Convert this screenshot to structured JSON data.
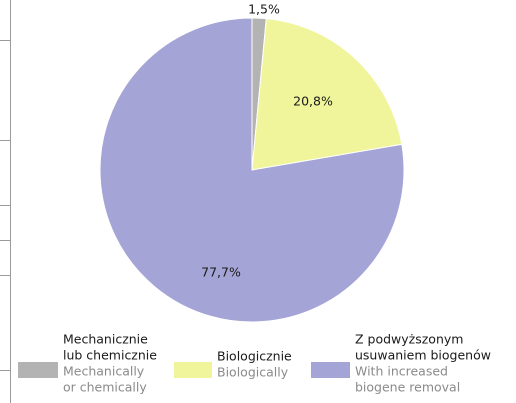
{
  "chart_data": {
    "type": "pie",
    "categories": [
      {
        "pl": [
          "Mechanicznie",
          "lub chemicznie"
        ],
        "en": [
          "Mechanically",
          "or chemically"
        ]
      },
      {
        "pl": [
          "Biologicznie"
        ],
        "en": [
          "Biologically"
        ]
      },
      {
        "pl": [
          "Z podwyższonym",
          "usuwaniem biogenów"
        ],
        "en": [
          "With increased",
          "biogene removal"
        ]
      }
    ],
    "values": [
      1.5,
      20.8,
      77.7
    ],
    "value_labels": [
      "1,5%",
      "20,8%",
      "77,7%"
    ],
    "colors": [
      "#b3b3b3",
      "#f0f59c",
      "#a4a4d6"
    ]
  }
}
